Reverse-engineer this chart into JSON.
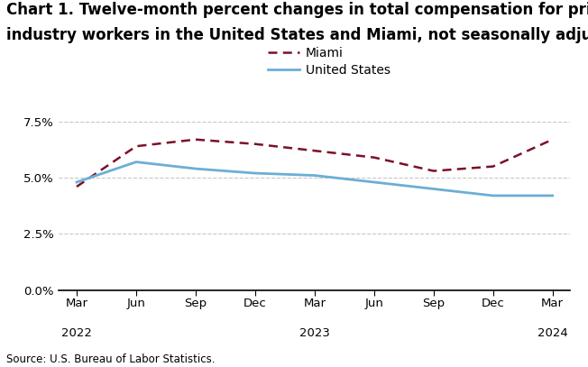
{
  "title_line1": "Chart 1. Twelve-month percent changes in total compensation for private",
  "title_line2": "industry workers in the United States and Miami, not seasonally adjusted",
  "source": "Source: U.S. Bureau of Labor Statistics.",
  "x_labels": [
    "Mar",
    "Jun",
    "Sep",
    "Dec",
    "Mar",
    "Jun",
    "Sep",
    "Dec",
    "Mar"
  ],
  "x_year_labels": [
    [
      "2022",
      0
    ],
    [
      "2023",
      4
    ],
    [
      "2024",
      8
    ]
  ],
  "miami_values": [
    4.6,
    6.4,
    6.7,
    6.5,
    6.2,
    5.9,
    5.3,
    5.5,
    6.7
  ],
  "us_values": [
    4.8,
    5.7,
    5.4,
    5.2,
    5.1,
    4.8,
    4.5,
    4.2,
    4.2
  ],
  "miami_color": "#7b1028",
  "us_color": "#6baed6",
  "miami_label": "Miami",
  "us_label": "United States",
  "ylim": [
    0.0,
    8.5
  ],
  "yticks": [
    0.0,
    2.5,
    5.0,
    7.5
  ],
  "ytick_labels": [
    "0.0%",
    "2.5%",
    "5.0%",
    "7.5%"
  ],
  "grid_color": "#c8c8c8",
  "background_color": "#ffffff",
  "title_fontsize": 12.0,
  "legend_fontsize": 10,
  "axis_fontsize": 9.5,
  "source_fontsize": 8.5
}
